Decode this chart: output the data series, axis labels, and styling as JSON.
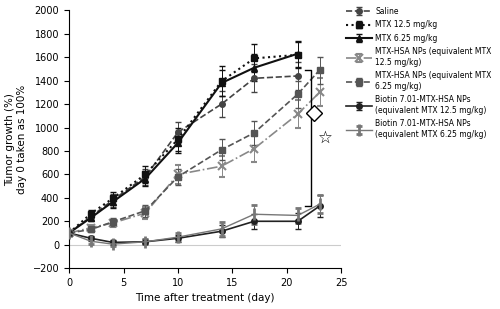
{
  "xlabel": "Time after treatment (day)",
  "ylabel": "Tumor growth (%)\nday 0 taken as 100%",
  "xlim": [
    0,
    25
  ],
  "ylim": [
    -200,
    2000
  ],
  "yticks": [
    -200,
    0,
    200,
    400,
    600,
    800,
    1000,
    1200,
    1400,
    1600,
    1800,
    2000
  ],
  "xticks": [
    0,
    5,
    10,
    15,
    20,
    25
  ],
  "series": [
    {
      "label": "Saline",
      "x": [
        0,
        2,
        4,
        7,
        10,
        14,
        17,
        21
      ],
      "y": [
        100,
        240,
        380,
        580,
        960,
        1200,
        1420,
        1440
      ],
      "yerr": [
        5,
        30,
        55,
        70,
        90,
        110,
        120,
        120
      ],
      "color": "#444444",
      "linestyle": "--",
      "marker": "o",
      "markersize": 4,
      "linewidth": 1.2
    },
    {
      "label": "MTX 12.5 mg/kg",
      "x": [
        0,
        2,
        4,
        7,
        10,
        14,
        17,
        21
      ],
      "y": [
        100,
        265,
        395,
        600,
        900,
        1395,
        1590,
        1620
      ],
      "yerr": [
        5,
        35,
        55,
        75,
        100,
        130,
        120,
        110
      ],
      "color": "#111111",
      "linestyle": ":",
      "marker": "s",
      "markersize": 4,
      "linewidth": 1.5
    },
    {
      "label": "MTX 6.25 mg/kg",
      "x": [
        0,
        2,
        4,
        7,
        10,
        14,
        17,
        21
      ],
      "y": [
        100,
        230,
        365,
        565,
        870,
        1380,
        1510,
        1630
      ],
      "yerr": [
        5,
        30,
        50,
        65,
        85,
        115,
        115,
        110
      ],
      "color": "#111111",
      "linestyle": "-",
      "marker": "^",
      "markersize": 4,
      "linewidth": 1.5
    },
    {
      "label": "MTX-HSA NPs (equivalent MTX\n12.5 mg/kg)",
      "x": [
        0,
        2,
        4,
        7,
        10,
        14,
        17,
        21,
        23
      ],
      "y": [
        100,
        145,
        185,
        270,
        600,
        670,
        820,
        1115,
        1300
      ],
      "yerr": [
        5,
        25,
        30,
        50,
        80,
        90,
        110,
        120,
        120
      ],
      "color": "#888888",
      "linestyle": "-.",
      "marker": "x",
      "markersize": 6,
      "linewidth": 1.2
    },
    {
      "label": "MTX-HSA NPs (equivalent MTX\n6.25 mg/kg)",
      "x": [
        0,
        2,
        4,
        7,
        10,
        14,
        17,
        21,
        23
      ],
      "y": [
        100,
        130,
        195,
        290,
        580,
        810,
        955,
        1285,
        1490
      ],
      "yerr": [
        5,
        25,
        35,
        50,
        70,
        90,
        100,
        115,
        115
      ],
      "color": "#555555",
      "linestyle": "--",
      "marker": "s",
      "markersize": 4,
      "linewidth": 1.2
    },
    {
      "label": "Biotin 7.01-MTX-HSA NPs\n(equivalent MTX 12.5 mg/kg)",
      "x": [
        0,
        2,
        4,
        7,
        10,
        14,
        17,
        21,
        23
      ],
      "y": [
        100,
        55,
        20,
        25,
        55,
        115,
        200,
        200,
        330
      ],
      "yerr": [
        5,
        20,
        20,
        20,
        30,
        50,
        65,
        70,
        90
      ],
      "color": "#222222",
      "linestyle": "-",
      "marker": "o",
      "markersize": 4,
      "linewidth": 1.2
    },
    {
      "label": "Biotin 7.01-MTX-HSA NPs\n(equivalent MTX 6.25 mg/kg)",
      "x": [
        0,
        2,
        4,
        7,
        10,
        14,
        17,
        21,
        23
      ],
      "y": [
        100,
        30,
        5,
        25,
        65,
        135,
        260,
        250,
        345
      ],
      "yerr": [
        5,
        20,
        20,
        20,
        35,
        60,
        80,
        65,
        75
      ],
      "color": "#777777",
      "linestyle": "-",
      "marker": "|",
      "markersize": 9,
      "linewidth": 1.0
    }
  ],
  "bracket_x": 22.2,
  "bracket_tick": 0.5,
  "bracket_y_top": 1490,
  "bracket_y_bot": 330,
  "star_x": 23.5,
  "star_y": 910,
  "star_fontsize": 12,
  "diamond_marker_x": 22.5,
  "diamond_marker_y": 1120,
  "background_color": "#ffffff",
  "legend_fontsize": 5.5,
  "axis_fontsize": 7.5,
  "tick_fontsize": 7
}
